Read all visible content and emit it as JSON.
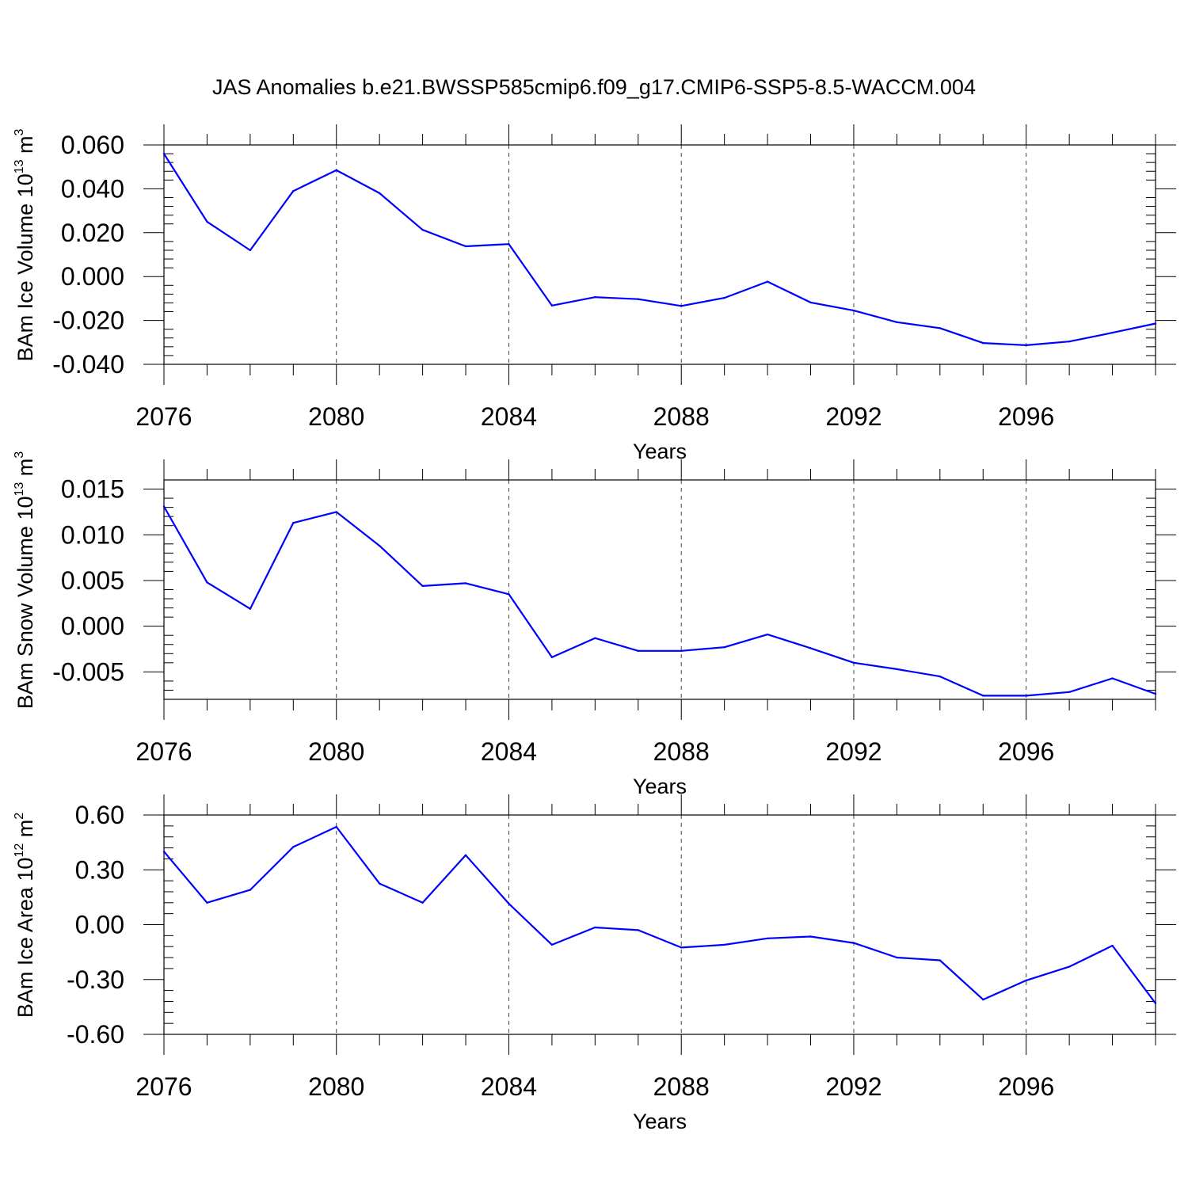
{
  "figure": {
    "title": "JAS Anomalies b.e21.BWSSP585cmip6.f09_g17.CMIP6-SSP5-8.5-WACCM.004"
  },
  "chart_data": [
    {
      "type": "line",
      "title": "",
      "xlabel": "Years",
      "ylabel_text": "BAm Ice Volume 10",
      "ylabel_exp": "13",
      "ylabel_unit": " m",
      "ylabel_unit_exp": "3",
      "xlim": [
        2076,
        2099
      ],
      "ylim": [
        -0.04,
        0.06
      ],
      "xticks": [
        2076,
        2080,
        2084,
        2088,
        2092,
        2096
      ],
      "xtick_labels": [
        "2076",
        "2080",
        "2084",
        "2088",
        "2092",
        "2096"
      ],
      "yticks": [
        -0.04,
        -0.02,
        0.0,
        0.02,
        0.04,
        0.06
      ],
      "ytick_labels": [
        "-0.040",
        "-0.020",
        "0.000",
        "0.020",
        "0.040",
        "0.060"
      ],
      "grid": "vertical dashed at major x ticks",
      "line_color": "#0000ff",
      "x": [
        2076,
        2077,
        2078,
        2079,
        2080,
        2081,
        2082,
        2083,
        2084,
        2085,
        2086,
        2087,
        2088,
        2089,
        2090,
        2091,
        2092,
        2093,
        2094,
        2095,
        2096,
        2097,
        2098,
        2099
      ],
      "y": [
        0.056,
        0.025,
        0.012,
        0.039,
        0.0485,
        0.038,
        0.0213,
        0.0138,
        0.0148,
        -0.0132,
        -0.0094,
        -0.0103,
        -0.0134,
        -0.0097,
        -0.0023,
        -0.0118,
        -0.0155,
        -0.0208,
        -0.0235,
        -0.0303,
        -0.0313,
        -0.0296,
        -0.0256,
        -0.0214
      ]
    },
    {
      "type": "line",
      "title": "",
      "xlabel": "Years",
      "ylabel_text": "BAm Snow Volume 10",
      "ylabel_exp": "13",
      "ylabel_unit": " m",
      "ylabel_unit_exp": "3",
      "xlim": [
        2076,
        2099
      ],
      "ylim": [
        -0.008,
        0.016
      ],
      "xticks": [
        2076,
        2080,
        2084,
        2088,
        2092,
        2096
      ],
      "xtick_labels": [
        "2076",
        "2080",
        "2084",
        "2088",
        "2092",
        "2096"
      ],
      "yticks": [
        -0.005,
        0.0,
        0.005,
        0.01,
        0.015
      ],
      "ytick_labels": [
        "-0.005",
        "0.000",
        "0.005",
        "0.010",
        "0.015"
      ],
      "grid": "vertical dashed at major x ticks",
      "line_color": "#0000ff",
      "x": [
        2076,
        2077,
        2078,
        2079,
        2080,
        2081,
        2082,
        2083,
        2084,
        2085,
        2086,
        2087,
        2088,
        2089,
        2090,
        2091,
        2092,
        2093,
        2094,
        2095,
        2096,
        2097,
        2098,
        2099
      ],
      "y": [
        0.0131,
        0.0048,
        0.0019,
        0.0113,
        0.0125,
        0.0088,
        0.0044,
        0.0047,
        0.0035,
        -0.0034,
        -0.0013,
        -0.0027,
        -0.0027,
        -0.0023,
        -0.0009,
        -0.0024,
        -0.004,
        -0.0047,
        -0.0055,
        -0.0076,
        -0.0076,
        -0.0072,
        -0.0057,
        -0.0074
      ]
    },
    {
      "type": "line",
      "title": "",
      "xlabel": "Years",
      "ylabel_text": "BAm Ice Area 10",
      "ylabel_exp": "12",
      "ylabel_unit": " m",
      "ylabel_unit_exp": "2",
      "xlim": [
        2076,
        2099
      ],
      "ylim": [
        -0.6,
        0.6
      ],
      "xticks": [
        2076,
        2080,
        2084,
        2088,
        2092,
        2096
      ],
      "xtick_labels": [
        "2076",
        "2080",
        "2084",
        "2088",
        "2092",
        "2096"
      ],
      "yticks": [
        -0.6,
        -0.3,
        0.0,
        0.3,
        0.6
      ],
      "ytick_labels": [
        "-0.60",
        "-0.30",
        "0.00",
        "0.30",
        "0.60"
      ],
      "grid": "vertical dashed at major x ticks",
      "line_color": "#0000ff",
      "x": [
        2076,
        2077,
        2078,
        2079,
        2080,
        2081,
        2082,
        2083,
        2084,
        2085,
        2086,
        2087,
        2088,
        2089,
        2090,
        2091,
        2092,
        2093,
        2094,
        2095,
        2096,
        2097,
        2098,
        2099
      ],
      "y": [
        0.4,
        0.12,
        0.19,
        0.425,
        0.535,
        0.225,
        0.12,
        0.38,
        0.115,
        -0.11,
        -0.015,
        -0.03,
        -0.125,
        -0.11,
        -0.075,
        -0.065,
        -0.1,
        -0.18,
        -0.195,
        -0.41,
        -0.305,
        -0.23,
        -0.115,
        -0.43
      ]
    }
  ]
}
